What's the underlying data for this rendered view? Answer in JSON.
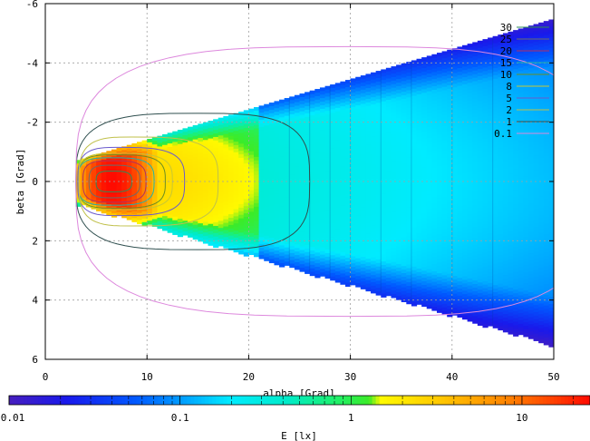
{
  "chart_data": {
    "type": "heatmap",
    "xlabel": "alpha [Grad]",
    "ylabel": "beta [Grad]",
    "colorbar_label": "E [lx]",
    "xlim": [
      0,
      50
    ],
    "ylim": [
      6,
      -6
    ],
    "x_ticks": [
      "0",
      "10",
      "20",
      "30",
      "40",
      "50"
    ],
    "y_ticks": [
      "-6",
      "-4",
      "-2",
      "0",
      "2",
      "4",
      "6"
    ],
    "grid": true,
    "colorbar": {
      "scale": "log",
      "range": [
        0.01,
        25
      ],
      "ticks": [
        "0.01",
        "0.1",
        "1",
        "10"
      ]
    },
    "contour_levels": [
      {
        "label": "30",
        "color": "#2e8b57"
      },
      {
        "label": "25",
        "color": "#6b6b6b"
      },
      {
        "label": "20",
        "color": "#b03060"
      },
      {
        "label": "15",
        "color": "#20b2aa"
      },
      {
        "label": "10",
        "color": "#6b8e23"
      },
      {
        "label": "8",
        "color": "#c8c832"
      },
      {
        "label": "5",
        "color": "#6a5acd"
      },
      {
        "label": "2",
        "color": "#c0c04a"
      },
      {
        "label": "1",
        "color": "#2f4f4f"
      },
      {
        "label": "0.1",
        "color": "#dd88dd"
      }
    ],
    "legend_position": "top-right",
    "field": {
      "peak_value": 25,
      "peak_alpha": 6.5,
      "peak_beta": 0,
      "fan_start_alpha": 3,
      "fan_half_width_at_start": 0.7,
      "fan_half_width_at_end": 6,
      "fan_end_alpha": 55,
      "bright_region_end_alpha": 21,
      "segment_edges_alpha": [
        24,
        26,
        28,
        30,
        33,
        36,
        40,
        44,
        50
      ]
    }
  }
}
